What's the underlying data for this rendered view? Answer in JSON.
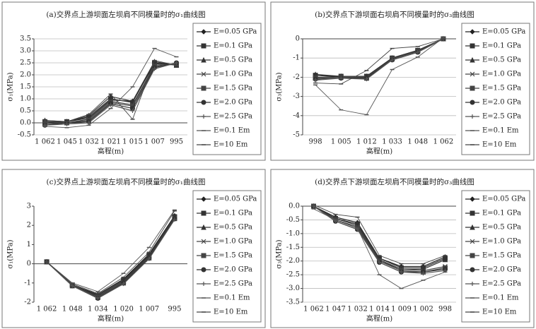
{
  "chart_data": [
    {
      "type": "line",
      "title": "(a)交界点上游坝面左坝肩不同模量时的σ₁曲线图",
      "x_label": "高程(m)",
      "y_label": "σ₁(MPa)",
      "categories": [
        "1 062",
        "1 045",
        "1 032",
        "1 021",
        "1 015",
        "1 007",
        "995"
      ],
      "ylim": [
        -0.5,
        3.5
      ],
      "yticks": [
        -0.5,
        {
          "value": 0,
          "label": "0.0"
        },
        0.5,
        {
          "value": 1,
          "label": "1.0"
        },
        1.5,
        {
          "value": 2,
          "label": "2.0"
        },
        2.5,
        {
          "value": 3,
          "label": "3.0"
        },
        3.5
      ],
      "grid": true,
      "series": [
        {
          "name": "E=0.05 GPa",
          "color": "#222",
          "values": [
            0.0,
            0.05,
            0.2,
            0.95,
            0.9,
            2.45,
            2.45
          ]
        },
        {
          "name": "E=0.1 GPa",
          "color": "#333",
          "values": [
            0.05,
            0.05,
            0.25,
            1.0,
            0.85,
            2.5,
            2.4
          ]
        },
        {
          "name": "E=0.5 GPa",
          "color": "#333",
          "values": [
            0.1,
            0.05,
            0.3,
            1.1,
            0.9,
            2.55,
            2.4
          ]
        },
        {
          "name": "E=1.0 GPa",
          "color": "#444",
          "values": [
            0.05,
            0.0,
            0.15,
            0.9,
            0.75,
            2.4,
            2.45
          ]
        },
        {
          "name": "E=1.5 GPa",
          "color": "#444",
          "values": [
            -0.05,
            0.0,
            0.1,
            0.85,
            0.7,
            2.35,
            2.45
          ]
        },
        {
          "name": "E=2.0 GPa",
          "color": "#333",
          "values": [
            -0.1,
            0.0,
            0.05,
            0.8,
            0.6,
            2.3,
            2.5
          ]
        },
        {
          "name": "E=2.5 GPa",
          "color": "#555",
          "values": [
            -0.1,
            -0.05,
            0.0,
            0.75,
            0.5,
            2.25,
            2.5
          ]
        },
        {
          "name": "E=0.1 Em",
          "color": "#555",
          "values": [
            -0.15,
            -0.2,
            -0.1,
            0.6,
            1.5,
            3.1,
            2.75
          ]
        },
        {
          "name": "E=10 Em",
          "color": "#444",
          "values": [
            0.1,
            0.05,
            0.35,
            1.2,
            0.15,
            2.6,
            2.4
          ]
        }
      ]
    },
    {
      "type": "line",
      "title": "(b)交界点下游坝面右坝肩不同模量时的σ₃曲线图",
      "x_label": "高程(m)",
      "y_label": "σ₃(MPa)",
      "categories": [
        "998",
        "1 005",
        "1 012",
        "1 033",
        "1 048",
        "1 062"
      ],
      "ylim": [
        -5,
        0
      ],
      "yticks": [
        -5,
        -4,
        -3,
        -2,
        -1,
        0
      ],
      "grid": true,
      "series": [
        {
          "name": "E=0.05 GPa",
          "color": "#222",
          "values": [
            -1.9,
            -2.0,
            -2.0,
            -1.0,
            -0.6,
            0.0
          ]
        },
        {
          "name": "E=0.1 GPa",
          "color": "#333",
          "values": [
            -1.9,
            -1.95,
            -1.95,
            -1.0,
            -0.6,
            0.0
          ]
        },
        {
          "name": "E=0.5 GPa",
          "color": "#333",
          "values": [
            -1.85,
            -1.95,
            -1.95,
            -1.0,
            -0.6,
            0.0
          ]
        },
        {
          "name": "E=1.0 GPa",
          "color": "#444",
          "values": [
            -2.0,
            -2.0,
            -2.0,
            -1.05,
            -0.65,
            0.0
          ]
        },
        {
          "name": "E=1.5 GPa",
          "color": "#444",
          "values": [
            -2.05,
            -2.0,
            -2.05,
            -1.05,
            -0.65,
            0.0
          ]
        },
        {
          "name": "E=2.0 GPa",
          "color": "#333",
          "values": [
            -2.1,
            -2.05,
            -2.05,
            -1.1,
            -0.7,
            0.0
          ]
        },
        {
          "name": "E=2.5 GPa",
          "color": "#555",
          "values": [
            -2.15,
            -2.05,
            -2.1,
            -1.1,
            -0.7,
            0.0
          ]
        },
        {
          "name": "E=0.1 Em",
          "color": "#555",
          "values": [
            -2.4,
            -3.7,
            -3.95,
            -1.6,
            -0.95,
            0.05
          ]
        },
        {
          "name": "E=10 Em",
          "color": "#444",
          "values": [
            -2.3,
            -2.35,
            -1.65,
            -0.5,
            -0.4,
            0.0
          ]
        }
      ]
    },
    {
      "type": "line",
      "title": "(c)交界点上游坝面左坝肩不同模量时的σ₁曲线图",
      "x_label": "高程(m)",
      "y_label": "σ₁(MPa)",
      "categories": [
        "1 062",
        "1 048",
        "1 034",
        "1 020",
        "1 007",
        "995"
      ],
      "ylim": [
        -2,
        3
      ],
      "yticks": [
        -2,
        -1,
        0,
        1,
        2,
        3
      ],
      "grid": false,
      "series": [
        {
          "name": "E=0.05 GPa",
          "color": "#222",
          "values": [
            0.1,
            -1.1,
            -1.6,
            -0.8,
            0.5,
            2.5
          ]
        },
        {
          "name": "E=0.1 GPa",
          "color": "#333",
          "values": [
            0.1,
            -1.1,
            -1.65,
            -0.85,
            0.45,
            2.45
          ]
        },
        {
          "name": "E=0.5 GPa",
          "color": "#333",
          "values": [
            0.1,
            -1.1,
            -1.7,
            -0.9,
            0.4,
            2.4
          ]
        },
        {
          "name": "E=1.0 GPa",
          "color": "#444",
          "values": [
            0.1,
            -1.1,
            -1.75,
            -0.95,
            0.35,
            2.4
          ]
        },
        {
          "name": "E=1.5 GPa",
          "color": "#444",
          "values": [
            0.1,
            -1.15,
            -1.75,
            -1.0,
            0.3,
            2.35
          ]
        },
        {
          "name": "E=2.0 GPa",
          "color": "#333",
          "values": [
            0.1,
            -1.15,
            -1.8,
            -1.0,
            0.3,
            2.35
          ]
        },
        {
          "name": "E=2.5 GPa",
          "color": "#555",
          "values": [
            0.1,
            -1.15,
            -1.8,
            -1.05,
            0.25,
            2.3
          ]
        },
        {
          "name": "E=0.1 Em",
          "color": "#555",
          "values": [
            0.1,
            -1.0,
            -1.45,
            -0.5,
            0.85,
            2.8
          ]
        },
        {
          "name": "E=10 Em",
          "color": "#444",
          "values": [
            0.1,
            -1.05,
            -1.55,
            -0.7,
            0.6,
            2.75
          ]
        }
      ]
    },
    {
      "type": "line",
      "title": "(d)交界点下游坝面左坝肩不同模量时的σ₃曲线图",
      "x_label": "高程(m)",
      "y_label": "σ₃(MPa)",
      "categories": [
        "1 062",
        "1 047",
        "1 032",
        "1 014",
        "1 009",
        "1 002",
        "998"
      ],
      "ylim": [
        -3.5,
        0
      ],
      "yticks": [
        -3.5,
        {
          "value": -3,
          "label": "-3.0"
        },
        -2.5,
        {
          "value": -2,
          "label": "-2.0"
        },
        -1.5,
        {
          "value": -1,
          "label": "-1.0"
        },
        -0.5,
        {
          "value": 0,
          "label": "0.0"
        }
      ],
      "grid": true,
      "series": [
        {
          "name": "E=0.05 GPa",
          "color": "#222",
          "values": [
            0.0,
            -0.4,
            -0.6,
            -1.9,
            -2.2,
            -2.2,
            -1.85
          ]
        },
        {
          "name": "E=0.1 GPa",
          "color": "#333",
          "values": [
            0.0,
            -0.45,
            -0.65,
            -1.9,
            -2.25,
            -2.25,
            -1.9
          ]
        },
        {
          "name": "E=0.5 GPa",
          "color": "#333",
          "values": [
            0.0,
            -0.45,
            -0.7,
            -1.95,
            -2.3,
            -2.3,
            -1.95
          ]
        },
        {
          "name": "E=1.0 GPa",
          "color": "#444",
          "values": [
            0.0,
            -0.5,
            -0.75,
            -2.0,
            -2.3,
            -2.35,
            -2.2
          ]
        },
        {
          "name": "E=1.5 GPa",
          "color": "#444",
          "values": [
            0.0,
            -0.5,
            -0.8,
            -2.0,
            -2.35,
            -2.4,
            -2.25
          ]
        },
        {
          "name": "E=2.0 GPa",
          "color": "#333",
          "values": [
            0.0,
            -0.55,
            -0.85,
            -2.05,
            -2.4,
            -2.4,
            -2.3
          ]
        },
        {
          "name": "E=2.5 GPa",
          "color": "#555",
          "values": [
            0.0,
            -0.55,
            -0.85,
            -2.05,
            -2.4,
            -2.45,
            -2.35
          ]
        },
        {
          "name": "E=0.1 Em",
          "color": "#555",
          "values": [
            -0.1,
            -0.5,
            -0.8,
            -2.5,
            -3.0,
            -2.7,
            -2.4
          ]
        },
        {
          "name": "E=10 Em",
          "color": "#444",
          "values": [
            0.05,
            -0.3,
            -0.4,
            -1.8,
            -2.1,
            -2.1,
            -1.8
          ]
        }
      ]
    }
  ]
}
